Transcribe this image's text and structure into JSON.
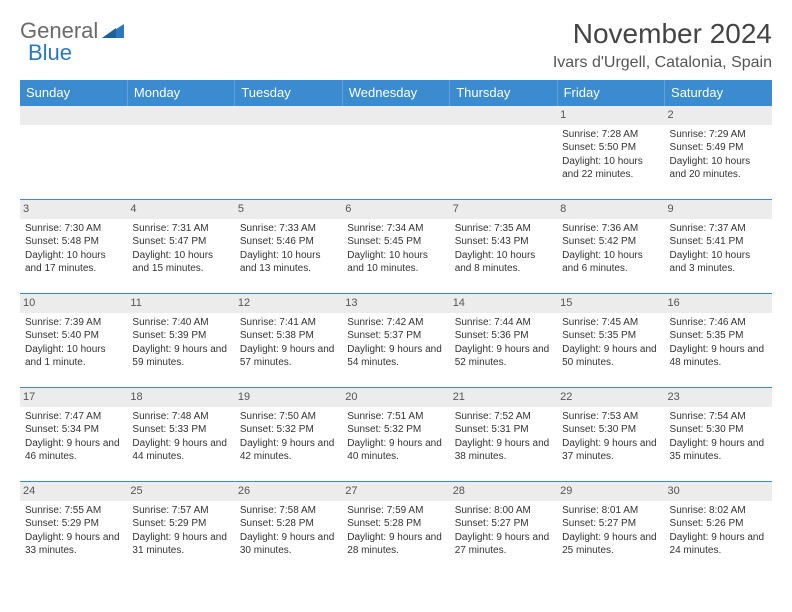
{
  "logo": {
    "text1": "General",
    "text2": "Blue"
  },
  "title": "November 2024",
  "location": "Ivars d'Urgell, Catalonia, Spain",
  "colors": {
    "header_bg": "#3a8bd0",
    "header_text": "#ffffff",
    "row_border": "#3a8bd0",
    "daynum_bg": "#ececec",
    "logo_gray": "#6a6a6a",
    "logo_blue": "#2b78c2"
  },
  "weekdays": [
    "Sunday",
    "Monday",
    "Tuesday",
    "Wednesday",
    "Thursday",
    "Friday",
    "Saturday"
  ],
  "weeks": [
    [
      {
        "n": "",
        "sunrise": "",
        "sunset": "",
        "daylight": ""
      },
      {
        "n": "",
        "sunrise": "",
        "sunset": "",
        "daylight": ""
      },
      {
        "n": "",
        "sunrise": "",
        "sunset": "",
        "daylight": ""
      },
      {
        "n": "",
        "sunrise": "",
        "sunset": "",
        "daylight": ""
      },
      {
        "n": "",
        "sunrise": "",
        "sunset": "",
        "daylight": ""
      },
      {
        "n": "1",
        "sunrise": "Sunrise: 7:28 AM",
        "sunset": "Sunset: 5:50 PM",
        "daylight": "Daylight: 10 hours and 22 minutes."
      },
      {
        "n": "2",
        "sunrise": "Sunrise: 7:29 AM",
        "sunset": "Sunset: 5:49 PM",
        "daylight": "Daylight: 10 hours and 20 minutes."
      }
    ],
    [
      {
        "n": "3",
        "sunrise": "Sunrise: 7:30 AM",
        "sunset": "Sunset: 5:48 PM",
        "daylight": "Daylight: 10 hours and 17 minutes."
      },
      {
        "n": "4",
        "sunrise": "Sunrise: 7:31 AM",
        "sunset": "Sunset: 5:47 PM",
        "daylight": "Daylight: 10 hours and 15 minutes."
      },
      {
        "n": "5",
        "sunrise": "Sunrise: 7:33 AM",
        "sunset": "Sunset: 5:46 PM",
        "daylight": "Daylight: 10 hours and 13 minutes."
      },
      {
        "n": "6",
        "sunrise": "Sunrise: 7:34 AM",
        "sunset": "Sunset: 5:45 PM",
        "daylight": "Daylight: 10 hours and 10 minutes."
      },
      {
        "n": "7",
        "sunrise": "Sunrise: 7:35 AM",
        "sunset": "Sunset: 5:43 PM",
        "daylight": "Daylight: 10 hours and 8 minutes."
      },
      {
        "n": "8",
        "sunrise": "Sunrise: 7:36 AM",
        "sunset": "Sunset: 5:42 PM",
        "daylight": "Daylight: 10 hours and 6 minutes."
      },
      {
        "n": "9",
        "sunrise": "Sunrise: 7:37 AM",
        "sunset": "Sunset: 5:41 PM",
        "daylight": "Daylight: 10 hours and 3 minutes."
      }
    ],
    [
      {
        "n": "10",
        "sunrise": "Sunrise: 7:39 AM",
        "sunset": "Sunset: 5:40 PM",
        "daylight": "Daylight: 10 hours and 1 minute."
      },
      {
        "n": "11",
        "sunrise": "Sunrise: 7:40 AM",
        "sunset": "Sunset: 5:39 PM",
        "daylight": "Daylight: 9 hours and 59 minutes."
      },
      {
        "n": "12",
        "sunrise": "Sunrise: 7:41 AM",
        "sunset": "Sunset: 5:38 PM",
        "daylight": "Daylight: 9 hours and 57 minutes."
      },
      {
        "n": "13",
        "sunrise": "Sunrise: 7:42 AM",
        "sunset": "Sunset: 5:37 PM",
        "daylight": "Daylight: 9 hours and 54 minutes."
      },
      {
        "n": "14",
        "sunrise": "Sunrise: 7:44 AM",
        "sunset": "Sunset: 5:36 PM",
        "daylight": "Daylight: 9 hours and 52 minutes."
      },
      {
        "n": "15",
        "sunrise": "Sunrise: 7:45 AM",
        "sunset": "Sunset: 5:35 PM",
        "daylight": "Daylight: 9 hours and 50 minutes."
      },
      {
        "n": "16",
        "sunrise": "Sunrise: 7:46 AM",
        "sunset": "Sunset: 5:35 PM",
        "daylight": "Daylight: 9 hours and 48 minutes."
      }
    ],
    [
      {
        "n": "17",
        "sunrise": "Sunrise: 7:47 AM",
        "sunset": "Sunset: 5:34 PM",
        "daylight": "Daylight: 9 hours and 46 minutes."
      },
      {
        "n": "18",
        "sunrise": "Sunrise: 7:48 AM",
        "sunset": "Sunset: 5:33 PM",
        "daylight": "Daylight: 9 hours and 44 minutes."
      },
      {
        "n": "19",
        "sunrise": "Sunrise: 7:50 AM",
        "sunset": "Sunset: 5:32 PM",
        "daylight": "Daylight: 9 hours and 42 minutes."
      },
      {
        "n": "20",
        "sunrise": "Sunrise: 7:51 AM",
        "sunset": "Sunset: 5:32 PM",
        "daylight": "Daylight: 9 hours and 40 minutes."
      },
      {
        "n": "21",
        "sunrise": "Sunrise: 7:52 AM",
        "sunset": "Sunset: 5:31 PM",
        "daylight": "Daylight: 9 hours and 38 minutes."
      },
      {
        "n": "22",
        "sunrise": "Sunrise: 7:53 AM",
        "sunset": "Sunset: 5:30 PM",
        "daylight": "Daylight: 9 hours and 37 minutes."
      },
      {
        "n": "23",
        "sunrise": "Sunrise: 7:54 AM",
        "sunset": "Sunset: 5:30 PM",
        "daylight": "Daylight: 9 hours and 35 minutes."
      }
    ],
    [
      {
        "n": "24",
        "sunrise": "Sunrise: 7:55 AM",
        "sunset": "Sunset: 5:29 PM",
        "daylight": "Daylight: 9 hours and 33 minutes."
      },
      {
        "n": "25",
        "sunrise": "Sunrise: 7:57 AM",
        "sunset": "Sunset: 5:29 PM",
        "daylight": "Daylight: 9 hours and 31 minutes."
      },
      {
        "n": "26",
        "sunrise": "Sunrise: 7:58 AM",
        "sunset": "Sunset: 5:28 PM",
        "daylight": "Daylight: 9 hours and 30 minutes."
      },
      {
        "n": "27",
        "sunrise": "Sunrise: 7:59 AM",
        "sunset": "Sunset: 5:28 PM",
        "daylight": "Daylight: 9 hours and 28 minutes."
      },
      {
        "n": "28",
        "sunrise": "Sunrise: 8:00 AM",
        "sunset": "Sunset: 5:27 PM",
        "daylight": "Daylight: 9 hours and 27 minutes."
      },
      {
        "n": "29",
        "sunrise": "Sunrise: 8:01 AM",
        "sunset": "Sunset: 5:27 PM",
        "daylight": "Daylight: 9 hours and 25 minutes."
      },
      {
        "n": "30",
        "sunrise": "Sunrise: 8:02 AM",
        "sunset": "Sunset: 5:26 PM",
        "daylight": "Daylight: 9 hours and 24 minutes."
      }
    ]
  ]
}
